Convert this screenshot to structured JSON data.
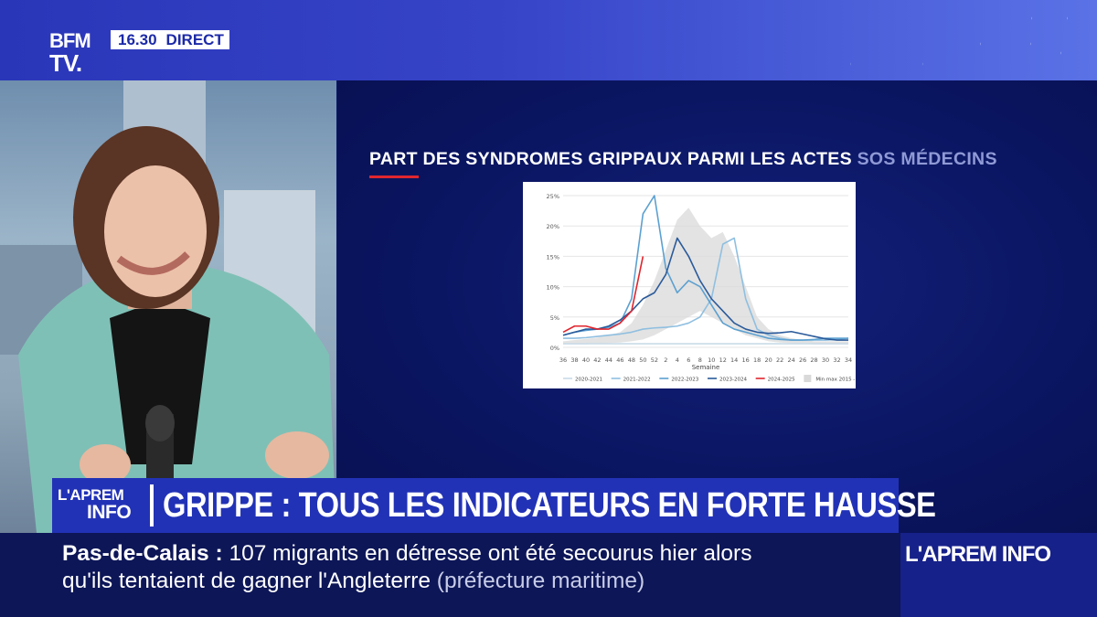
{
  "channel": {
    "logo_line1": "BFM",
    "logo_line2": "TV.",
    "clock": "16.30",
    "live_label": "DIRECT"
  },
  "screen": {
    "title_main": "PART DES SYNDROMES GRIPPAUX PARMI LES ACTES ",
    "title_accent": "SOS MÉDECINS"
  },
  "chart_data": {
    "type": "line",
    "title": "",
    "xlabel": "Semaine",
    "ylabel": "",
    "y_ticks": [
      "0%",
      "5%",
      "10%",
      "15%",
      "20%",
      "25%"
    ],
    "ylim": [
      0,
      25
    ],
    "categories": [
      "36",
      "38",
      "40",
      "42",
      "44",
      "46",
      "48",
      "50",
      "52",
      "2",
      "4",
      "6",
      "8",
      "10",
      "12",
      "14",
      "16",
      "18",
      "20",
      "22",
      "24",
      "26",
      "28",
      "30",
      "32",
      "34"
    ],
    "grid": true,
    "legend_position": "bottom",
    "band": {
      "name": "Min max 2015 - 2020",
      "min": [
        0.5,
        0.5,
        0.5,
        0.6,
        0.7,
        0.8,
        1,
        1.3,
        2,
        3,
        4,
        5,
        6,
        5,
        4,
        3,
        2,
        1.5,
        1,
        0.8,
        0.7,
        0.6,
        0.5,
        0.5,
        0.5,
        0.5
      ],
      "max": [
        1,
        1.2,
        1.4,
        1.6,
        2,
        2.5,
        4,
        7,
        11,
        16,
        21,
        23,
        20,
        18,
        19,
        15,
        10,
        5,
        3,
        2,
        1.5,
        1.2,
        1,
        1,
        1,
        1
      ]
    },
    "series": [
      {
        "name": "2020-2021",
        "color": "#c9dbe8",
        "values": [
          0.6,
          0.6,
          0.6,
          0.6,
          0.6,
          0.6,
          0.6,
          0.6,
          0.6,
          0.6,
          0.6,
          0.6,
          0.6,
          0.6,
          0.6,
          0.6,
          0.6,
          0.6,
          0.6,
          0.6,
          0.6,
          0.6,
          0.6,
          0.6,
          0.6,
          0.6
        ]
      },
      {
        "name": "2021-2022",
        "color": "#8fbfe0",
        "values": [
          1.5,
          1.5,
          1.6,
          1.8,
          2.0,
          2.2,
          2.5,
          3.0,
          3.2,
          3.3,
          3.5,
          4.0,
          5.0,
          8.0,
          17.0,
          18.0,
          8.0,
          3.0,
          2.0,
          1.5,
          1.2,
          1.2,
          1.2,
          1.2,
          1.3,
          1.5
        ]
      },
      {
        "name": "2022-2023",
        "color": "#5ca0d0",
        "values": [
          2.0,
          2.5,
          2.8,
          3.0,
          3.3,
          4.0,
          8.0,
          22.0,
          25.0,
          13.0,
          9.0,
          11.0,
          10.0,
          7.0,
          4.0,
          3.0,
          2.5,
          2.0,
          1.5,
          1.3,
          1.2,
          1.2,
          1.3,
          1.5,
          1.5,
          1.5
        ]
      },
      {
        "name": "2023-2024",
        "color": "#2a5a9a",
        "values": [
          2.0,
          2.5,
          3.0,
          3.0,
          3.5,
          4.5,
          6.0,
          8.0,
          9.0,
          12.0,
          18.0,
          15.0,
          11.0,
          8.0,
          6.0,
          4.0,
          3.0,
          2.5,
          2.3,
          2.4,
          2.6,
          2.2,
          1.8,
          1.4,
          1.2,
          1.2
        ]
      },
      {
        "name": "2024-2025",
        "color": "#e0262e",
        "values": [
          2.5,
          3.5,
          3.5,
          3.0,
          3.0,
          4.0,
          6.0,
          15.0,
          null,
          null,
          null,
          null,
          null,
          null,
          null,
          null,
          null,
          null,
          null,
          null,
          null,
          null,
          null,
          null,
          null,
          null
        ]
      }
    ]
  },
  "banner": {
    "show_line1": "L'APREM",
    "show_line2": "INFO",
    "headline": "GRIPPE : TOUS LES INDICATEURS EN FORTE HAUSSE"
  },
  "ticker": {
    "place": "Pas-de-Calais :",
    "line1_text": " 107 migrants en détresse ont été secourus hier alors",
    "line2_text": "qu'ils tentaient de gagner l'Angleterre ",
    "source": "(préfecture maritime)",
    "brand": "L'APREM INFO"
  },
  "colors": {
    "brand_blue": "#2232b6",
    "ticker_navy": "#0d1657",
    "accent_red": "#e0262e"
  }
}
